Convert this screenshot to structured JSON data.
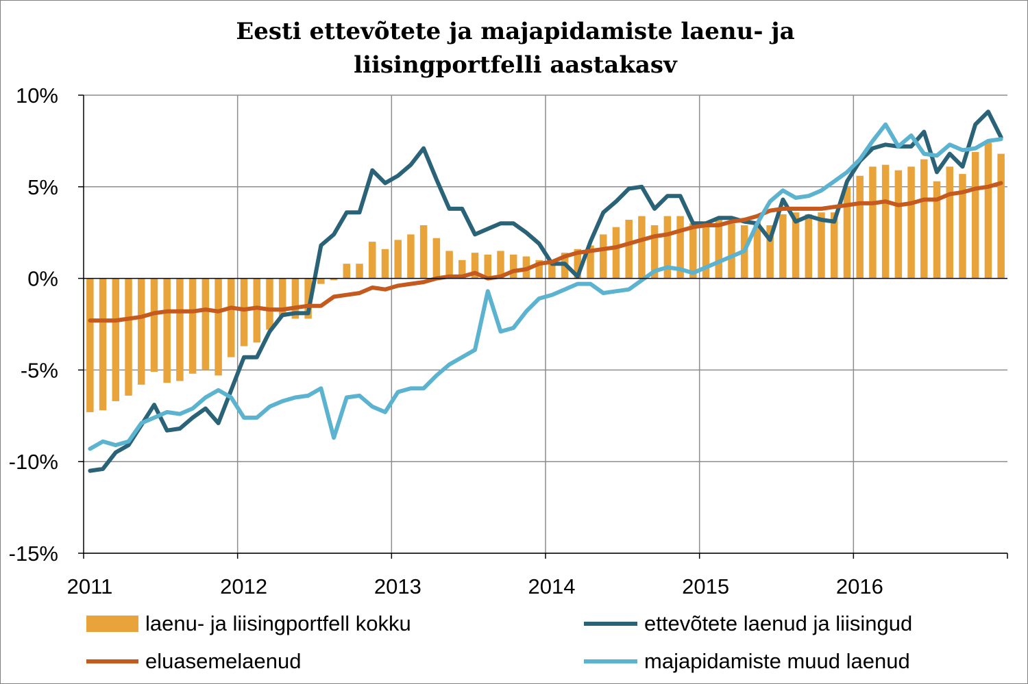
{
  "chart_data": {
    "type": "bar+line",
    "title_lines": [
      "Eesti ettevõtete ja majapidamiste laenu- ja",
      "liisingportfelli aastakasv"
    ],
    "x_start": "2011-01",
    "x_end": "2016-12",
    "x_ticks": [
      "2011",
      "2012",
      "2013",
      "2014",
      "2015",
      "2016"
    ],
    "ylim": [
      -15,
      10
    ],
    "y_ticks": [
      10,
      5,
      0,
      -5,
      -10,
      -15
    ],
    "y_tick_labels": [
      "10%",
      "5%",
      "0%",
      "-5%",
      "-10%",
      "-15%"
    ],
    "grid": "vertical and horizontal",
    "legend_position": "bottom",
    "bars": {
      "name": "laenu- ja liisingportfell kokku",
      "color": "#E8A33A",
      "values": [
        -7.3,
        -7.2,
        -6.7,
        -6.4,
        -5.8,
        -5.1,
        -5.7,
        -5.6,
        -5.2,
        -5.0,
        -5.3,
        -4.3,
        -3.7,
        -3.5,
        -2.8,
        -2.1,
        -2.2,
        -2.2,
        -0.3,
        -0.1,
        0.8,
        0.8,
        2.0,
        1.6,
        2.1,
        2.4,
        2.9,
        2.2,
        1.5,
        1.0,
        1.4,
        1.3,
        1.5,
        1.3,
        1.2,
        1.0,
        0.8,
        1.4,
        1.6,
        1.8,
        2.4,
        2.8,
        3.2,
        3.4,
        2.9,
        3.4,
        3.4,
        3.0,
        2.8,
        3.2,
        3.0,
        2.9,
        3.1,
        2.9,
        3.5,
        3.6,
        3.5,
        3.6,
        3.6,
        5.0,
        5.6,
        6.1,
        6.2,
        5.9,
        6.1,
        6.5,
        5.3,
        6.1,
        5.7,
        6.9,
        7.4,
        6.8
      ]
    },
    "series": [
      {
        "name": "ettevõtete laenud ja liisingud",
        "color": "#2A6377",
        "values": [
          -10.5,
          -10.4,
          -9.5,
          -9.1,
          -8.0,
          -6.9,
          -8.3,
          -8.2,
          -7.6,
          -7.1,
          -7.9,
          -6.1,
          -4.3,
          -4.3,
          -2.9,
          -2.0,
          -1.9,
          -1.9,
          1.8,
          2.4,
          3.6,
          3.6,
          5.9,
          5.2,
          5.6,
          6.2,
          7.1,
          5.4,
          3.8,
          3.8,
          2.4,
          2.7,
          3.0,
          3.0,
          2.5,
          1.9,
          0.8,
          0.8,
          0.1,
          2.0,
          3.6,
          4.2,
          4.9,
          5.0,
          3.8,
          4.5,
          4.5,
          3.0,
          3.0,
          3.3,
          3.3,
          3.1,
          3.0,
          2.1,
          4.3,
          3.1,
          3.4,
          3.2,
          3.1,
          5.3,
          6.4,
          7.1,
          7.3,
          7.2,
          7.2,
          8.0,
          5.8,
          6.8,
          6.1,
          8.4,
          9.1,
          7.7
        ]
      },
      {
        "name": "eluasemelaenud",
        "color": "#C55A1E",
        "values": [
          -2.3,
          -2.3,
          -2.3,
          -2.2,
          -2.1,
          -1.9,
          -1.8,
          -1.8,
          -1.8,
          -1.7,
          -1.8,
          -1.6,
          -1.7,
          -1.6,
          -1.7,
          -1.7,
          -1.6,
          -1.5,
          -1.5,
          -1.0,
          -0.9,
          -0.8,
          -0.5,
          -0.6,
          -0.4,
          -0.3,
          -0.2,
          0.0,
          0.1,
          0.1,
          0.3,
          0.0,
          0.1,
          0.4,
          0.5,
          0.8,
          0.9,
          1.2,
          1.4,
          1.5,
          1.6,
          1.7,
          1.9,
          2.1,
          2.3,
          2.4,
          2.6,
          2.8,
          2.9,
          2.9,
          3.1,
          3.2,
          3.4,
          3.7,
          3.8,
          3.8,
          3.8,
          3.8,
          3.9,
          4.0,
          4.1,
          4.1,
          4.2,
          4.0,
          4.1,
          4.3,
          4.3,
          4.6,
          4.7,
          4.9,
          5.0,
          5.2
        ]
      },
      {
        "name": "majapidamiste muud laenud",
        "color": "#5BB3CF",
        "values": [
          -9.3,
          -8.9,
          -9.1,
          -8.9,
          -7.9,
          -7.6,
          -7.3,
          -7.4,
          -7.1,
          -6.5,
          -6.1,
          -6.5,
          -7.6,
          -7.6,
          -7.0,
          -6.7,
          -6.5,
          -6.4,
          -6.0,
          -8.7,
          -6.5,
          -6.4,
          -7.0,
          -7.3,
          -6.2,
          -6.0,
          -6.0,
          -5.3,
          -4.7,
          -4.3,
          -3.9,
          -0.7,
          -2.9,
          -2.7,
          -1.8,
          -1.1,
          -0.9,
          -0.6,
          -0.3,
          -0.3,
          -0.8,
          -0.7,
          -0.6,
          -0.1,
          0.4,
          0.6,
          0.5,
          0.3,
          0.6,
          0.9,
          1.2,
          1.5,
          3.0,
          4.2,
          4.8,
          4.4,
          4.5,
          4.8,
          5.3,
          5.8,
          6.5,
          7.5,
          8.4,
          7.2,
          7.8,
          6.8,
          6.7,
          7.3,
          7.0,
          7.1,
          7.5,
          7.6
        ]
      }
    ]
  }
}
